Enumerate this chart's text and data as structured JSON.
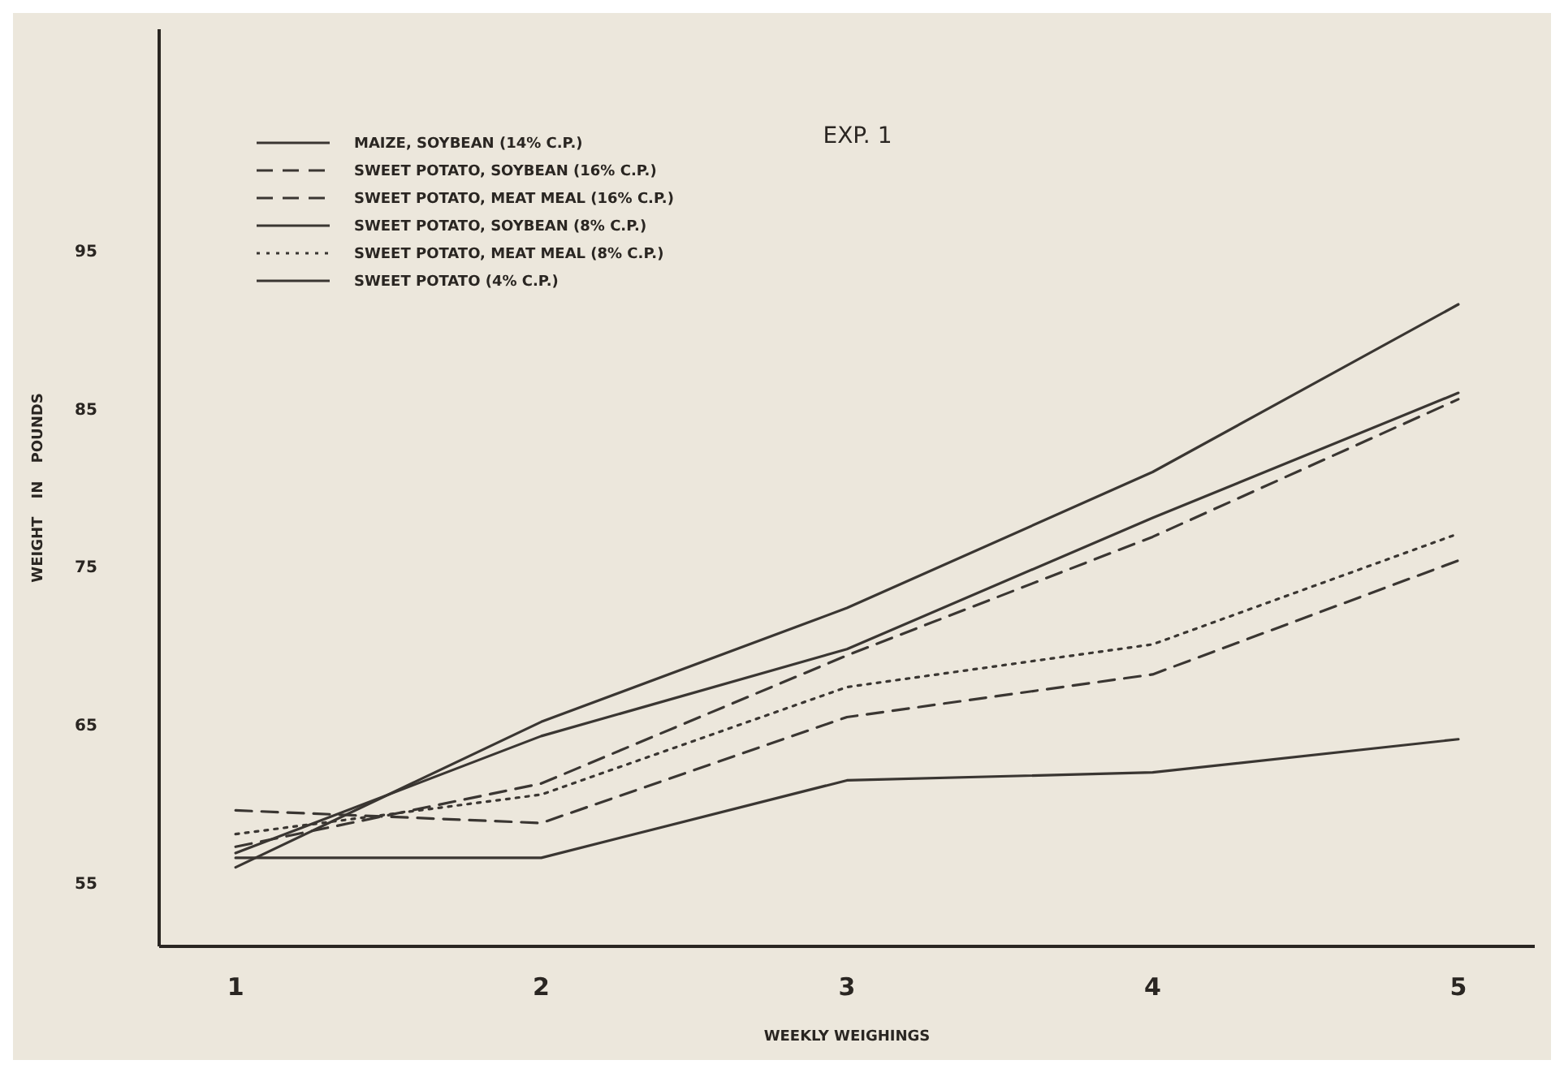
{
  "chart_data": {
    "type": "line",
    "title": "EXP. 1",
    "xlabel": "WEEKLY WEIGHINGS",
    "ylabel": "WEIGHT IN POUNDS",
    "x": [
      1,
      2,
      3,
      4,
      5
    ],
    "xlim": [
      0.75,
      5.25
    ],
    "xticks": [
      1,
      2,
      3,
      4,
      5
    ],
    "ylim": [
      51,
      109
    ],
    "yticks": [
      55,
      65,
      75,
      85,
      95
    ],
    "grid": false,
    "legend": "top left",
    "series": [
      {
        "name": "MAIZE, SOYBEAN (14% C.P.)",
        "color": "#3a3632",
        "line_style": "solid",
        "values": [
          56.0,
          65.2,
          72.4,
          81.0,
          91.6
        ]
      },
      {
        "name": "SWEET POTATO, SOYBEAN (16% C.P.)",
        "color": "#3a3632",
        "line_style": "dashed",
        "values": [
          57.3,
          61.3,
          69.4,
          76.9,
          85.6
        ]
      },
      {
        "name": "SWEET POTATO, MEAT MEAL (16% C.P.)",
        "color": "#3a3632",
        "line_style": "dashed",
        "values": [
          59.6,
          58.8,
          65.5,
          68.2,
          75.4
        ]
      },
      {
        "name": "SWEET POTATO, SOYBEAN (8% C.P.)",
        "color": "#3a3632",
        "line_style": "solid",
        "values": [
          56.9,
          64.3,
          69.8,
          78.1,
          86.0
        ]
      },
      {
        "name": "SWEET POTATO, MEAT MEAL (8% C.P.)",
        "color": "#3a3632",
        "line_style": "dotted",
        "values": [
          58.1,
          60.6,
          67.4,
          70.1,
          77.1
        ]
      },
      {
        "name": "SWEET POTATO (4% C.P.)",
        "color": "#3a3632",
        "line_style": "solid",
        "values": [
          56.6,
          56.6,
          61.5,
          62.0,
          64.1
        ]
      }
    ]
  }
}
